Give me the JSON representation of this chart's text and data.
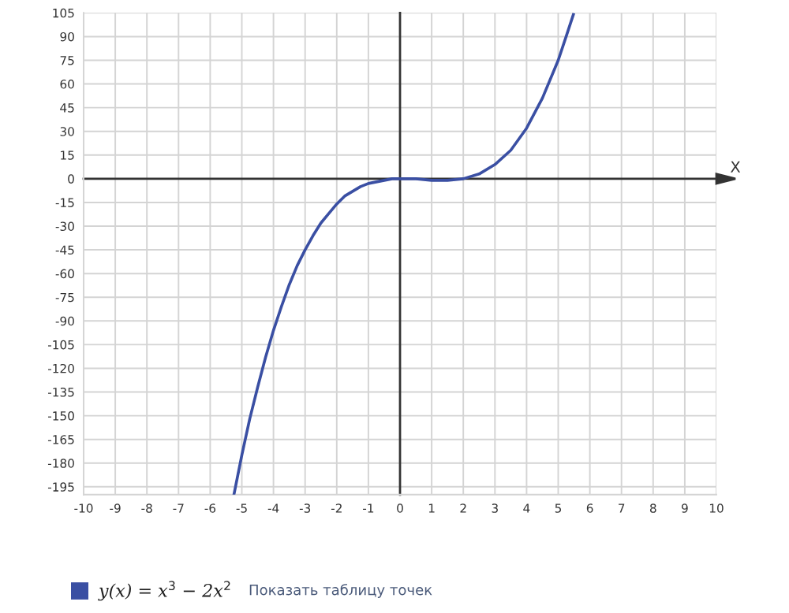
{
  "chart_data": {
    "type": "line",
    "xlabel": "X",
    "xlim": [
      -10,
      10
    ],
    "xticks": [
      -10,
      -9,
      -8,
      -7,
      -6,
      -5,
      -4,
      -3,
      -2,
      -1,
      0,
      1,
      2,
      3,
      4,
      5,
      6,
      7,
      8,
      9,
      10
    ],
    "ylim": [
      -200,
      105
    ],
    "yticks": [
      -195,
      -180,
      -165,
      -150,
      -135,
      -120,
      -105,
      -90,
      -75,
      -60,
      -45,
      -30,
      -15,
      0,
      15,
      30,
      45,
      60,
      75,
      90,
      105
    ],
    "grid": true,
    "legend": "bottom left",
    "marker": "none",
    "line_style": "solid",
    "annotations": [
      "Показать таблицу точек"
    ],
    "series": [
      {
        "name": "y(x) = x$^{3}$ − 2x$^{2}$",
        "color": "#3a4fa3",
        "x": [
          -5.25,
          -5,
          -4.75,
          -4.5,
          -4.25,
          -4,
          -3.75,
          -3.5,
          -3.25,
          -3,
          -2.75,
          -2.5,
          -2.25,
          -2,
          -1.75,
          -1.5,
          -1.25,
          -1,
          -0.75,
          -0.5,
          -0.25,
          0,
          0.5,
          1,
          1.33,
          1.5,
          2,
          2.5,
          3,
          3.5,
          4,
          4.5,
          5,
          5.25,
          5.48
        ],
        "values": [
          -200,
          -175,
          -152,
          -132,
          -113,
          -96,
          -81,
          -67,
          -55,
          -45,
          -36,
          -28,
          -22,
          -16,
          -11,
          -8,
          -5,
          -3,
          -2,
          -1,
          0,
          0,
          0,
          -1,
          -1,
          -1,
          0,
          3,
          9,
          18,
          32,
          51,
          75,
          90,
          104
        ]
      }
    ]
  }
}
